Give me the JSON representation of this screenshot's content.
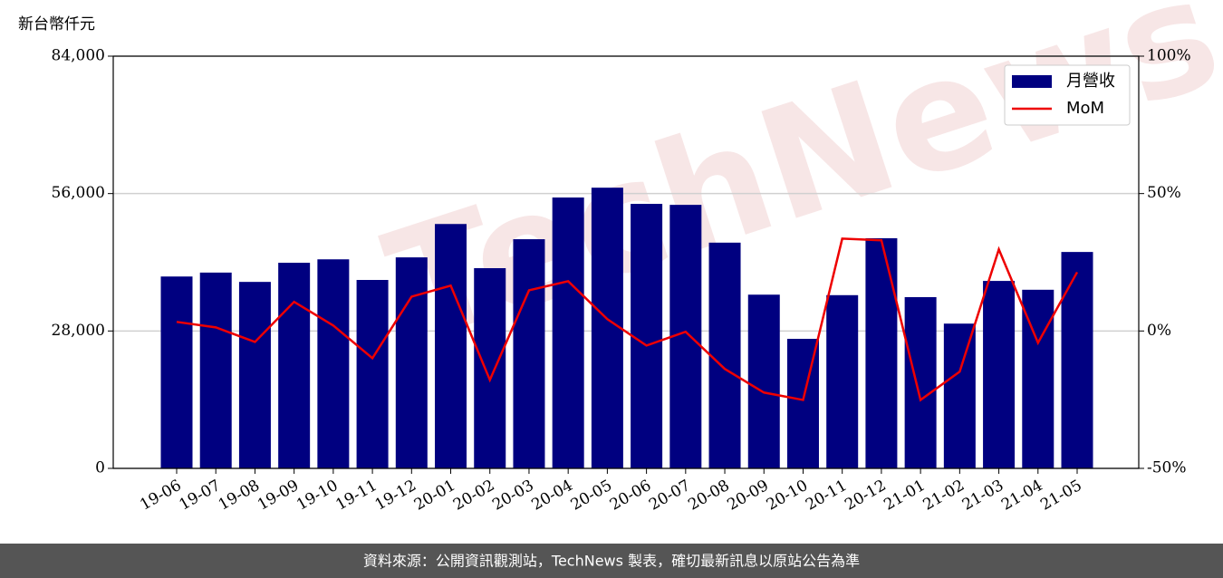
{
  "chart_data": {
    "type": "bar_line",
    "y_label": "新台幣仟元",
    "watermark": "TechNews",
    "footer": "資料來源：公開資訊觀測站，TechNews 製表，確切最新訊息以原站公告為準",
    "categories": [
      "19-06",
      "19-07",
      "19-08",
      "19-09",
      "19-10",
      "19-11",
      "19-12",
      "20-01",
      "20-02",
      "20-03",
      "20-04",
      "20-05",
      "20-06",
      "20-07",
      "20-08",
      "20-09",
      "20-10",
      "20-11",
      "20-12",
      "21-01",
      "21-02",
      "21-03",
      "21-04",
      "21-05"
    ],
    "series": [
      {
        "name": "月營收",
        "color": "#000080",
        "values": [
          39100,
          39900,
          38000,
          41900,
          42600,
          38400,
          43000,
          49800,
          40800,
          46700,
          55200,
          57200,
          53900,
          53700,
          46000,
          35400,
          26400,
          35300,
          46900,
          34900,
          29500,
          38200,
          36400,
          44100
        ]
      },
      {
        "name": "MoM",
        "color": "#ee0000",
        "axis": "y2",
        "values": [
          3.3,
          1.3,
          -4.0,
          10.6,
          2.0,
          -9.9,
          12.5,
          16.5,
          -17.8,
          14.8,
          18.1,
          4.3,
          -5.3,
          -0.3,
          -13.8,
          -22.4,
          -25.1,
          33.6,
          33.0,
          -25.1,
          -14.8,
          29.7,
          -4.3,
          21.4
        ]
      }
    ],
    "ylim": [
      0,
      84000
    ],
    "yticks": [
      0,
      {
        "value": 28000,
        "label": "28,000"
      },
      {
        "value": 56000,
        "label": "56,000"
      },
      {
        "value": 84000,
        "label": "84,000"
      }
    ],
    "y2lim": [
      -50,
      100
    ],
    "y2ticks": [
      {
        "value": -50,
        "label": "-50%"
      },
      {
        "value": 0,
        "label": "0%"
      },
      {
        "value": 50,
        "label": "50%"
      },
      {
        "value": 100,
        "label": "100%"
      }
    ],
    "grid": true,
    "legend": "upper right"
  }
}
